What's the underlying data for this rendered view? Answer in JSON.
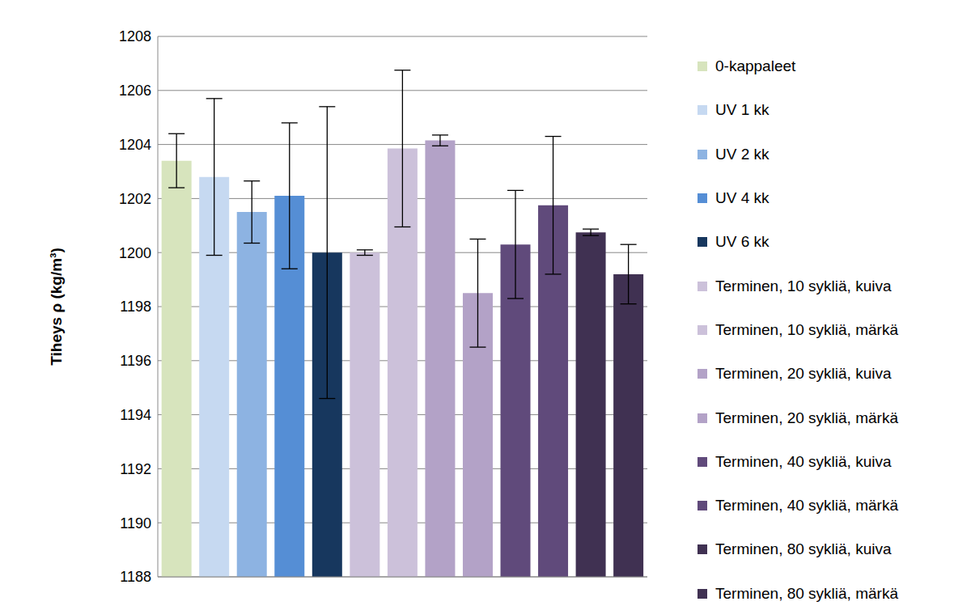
{
  "chart_data": {
    "type": "bar",
    "y_label": "Tiheys ρ (kg/m³)",
    "categories": [
      "0-kappaleet",
      "UV 1 kk",
      "UV 2 kk",
      "UV 4 kk",
      "UV 6 kk",
      "Terminen, 10 sykliä, kuiva",
      "Terminen, 10 sykliä, märkä",
      "Terminen, 20 sykliä, kuiva",
      "Terminen, 20 sykliä, märkä",
      "Terminen, 40 sykliä, kuiva",
      "Terminen, 40 sykliä, märkä",
      "Terminen, 80 sykliä, kuiva",
      "Terminen, 80 sykliä, märkä"
    ],
    "values": [
      1203.4,
      1202.8,
      1201.5,
      1202.1,
      1200.0,
      1200.0,
      1203.85,
      1204.15,
      1198.5,
      1200.3,
      1201.75,
      1200.75,
      1199.2
    ],
    "errors": [
      1.0,
      2.9,
      1.15,
      2.7,
      5.4,
      0.1,
      2.9,
      0.2,
      2.0,
      2.0,
      2.55,
      0.12,
      1.1
    ],
    "colors": [
      "#d7e4bd",
      "#c6d9f1",
      "#8db3e2",
      "#558ed5",
      "#17375e",
      "#ccc1da",
      "#ccc1da",
      "#b3a2c7",
      "#b3a2c7",
      "#604a7b",
      "#604a7b",
      "#403152",
      "#403152"
    ],
    "ylim": [
      1188,
      1208
    ],
    "yticks": [
      1188,
      1190,
      1192,
      1194,
      1196,
      1198,
      1200,
      1202,
      1204,
      1206,
      1208
    ],
    "grid": true,
    "legend": "right",
    "tick_labels": "y"
  }
}
